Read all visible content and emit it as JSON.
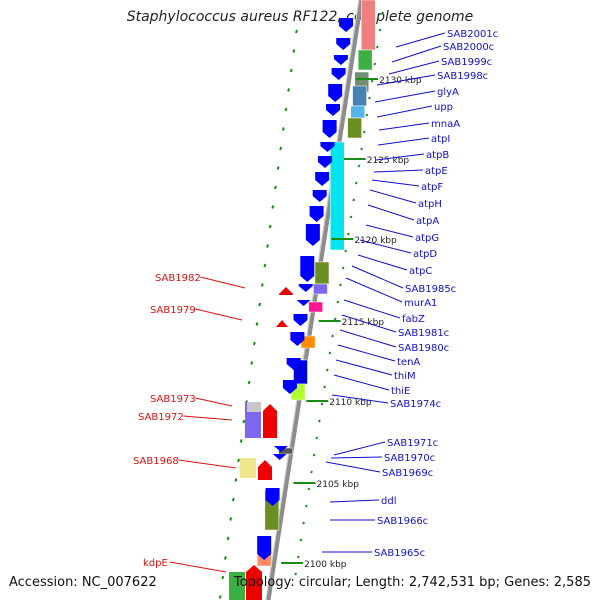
{
  "title": "Staphylococcus aureus RF122, complete genome",
  "accession_label": "Accession: NC_007622",
  "topology_label": "Topology: circular; Length: 2,742,531 bp; Genes: 2,585",
  "colors": {
    "forward_gene": "#0000ff",
    "reverse_gene": "#ee0000",
    "label_blue": "#1010cc",
    "label_red": "#dd1111",
    "dash": "#1a8c1a",
    "backbone": "#8c8c8c"
  },
  "kbp_marks": [
    "2130 kbp",
    "2125 kbp",
    "2120 kbp",
    "2115 kbp",
    "2110 kbp",
    "2105 kbp",
    "2100 kbp"
  ],
  "right_labels": [
    "SAB2001c",
    "SAB2000c",
    "SAB1999c",
    "SAB1998c",
    "glyA",
    "upp",
    "mnaA",
    "atpI",
    "atpB",
    "atpE",
    "atpF",
    "atpH",
    "atpA",
    "atpG",
    "atpD",
    "atpC",
    "SAB1985c",
    "murA1",
    "fabZ",
    "SAB1981c",
    "SAB1980c",
    "tenA",
    "thiM",
    "thiE",
    "SAB1974c",
    "SAB1971c",
    "SAB1970c",
    "SAB1969c",
    "ddl",
    "SAB1966c",
    "SAB1965c"
  ],
  "left_labels": [
    "SAB1982",
    "SAB1979",
    "SAB1973",
    "SAB1972",
    "SAB1968",
    "kdpE"
  ]
}
